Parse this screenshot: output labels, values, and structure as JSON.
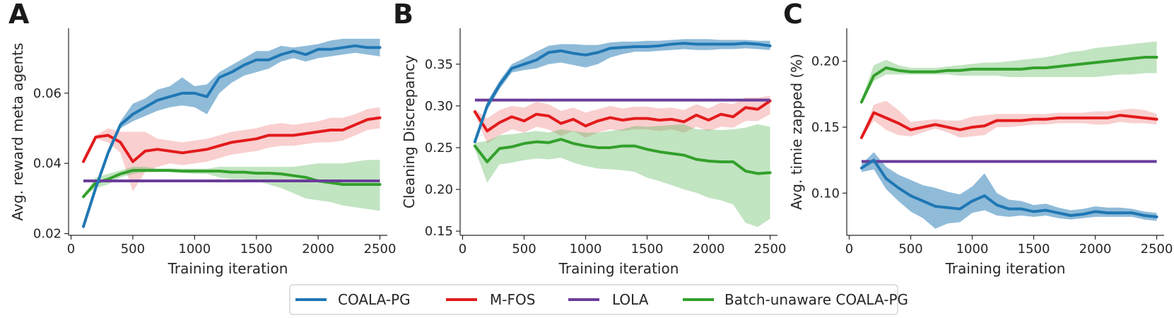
{
  "series_meta": [
    {
      "key": "coala",
      "name": "COALA-PG",
      "color": "#1f77b4",
      "fill": "#1f77b4"
    },
    {
      "key": "mfos",
      "name": "M-FOS",
      "color": "#e31a1c",
      "fill": "#f08080"
    },
    {
      "key": "lola",
      "name": "LOLA",
      "color": "#6a3d9a",
      "fill": "#6a3d9a"
    },
    {
      "key": "batch",
      "name": "Batch-unaware COALA-PG",
      "color": "#33a02c",
      "fill": "#5cb85c"
    }
  ],
  "chart_data": [
    {
      "type": "line",
      "letter": "A",
      "title": "",
      "xlabel": "Training iteration",
      "ylabel": "Avg. reward meta agents",
      "xlim": [
        -20,
        2560
      ],
      "ylim": [
        0.0195,
        0.0785
      ],
      "xticks": [
        0,
        500,
        1000,
        1500,
        2000,
        2500
      ],
      "xtick_labels": [
        "0",
        "500",
        "1000",
        "1500",
        "2000",
        "2500"
      ],
      "yticks": [
        0.02,
        0.04,
        0.06
      ],
      "ytick_labels": [
        "0.02",
        "0.04",
        "0.06"
      ],
      "x": [
        100,
        200,
        300,
        400,
        500,
        600,
        700,
        800,
        900,
        1000,
        1100,
        1200,
        1300,
        1400,
        1500,
        1600,
        1700,
        1800,
        1900,
        2000,
        2100,
        2200,
        2300,
        2400,
        2500
      ],
      "series": [
        {
          "key": "coala",
          "name": "COALA-PG",
          "values": [
            0.022,
            0.033,
            0.043,
            0.051,
            0.054,
            0.056,
            0.058,
            0.059,
            0.06,
            0.06,
            0.059,
            0.0645,
            0.066,
            0.068,
            0.0695,
            0.0695,
            0.071,
            0.072,
            0.071,
            0.0725,
            0.0725,
            0.073,
            0.0735,
            0.073,
            0.073
          ],
          "lower": [
            0.022,
            0.033,
            0.042,
            0.05,
            0.052,
            0.0535,
            0.055,
            0.056,
            0.0565,
            0.056,
            0.054,
            0.06,
            0.063,
            0.065,
            0.066,
            0.067,
            0.069,
            0.07,
            0.069,
            0.07,
            0.0705,
            0.071,
            0.0715,
            0.071,
            0.0705
          ],
          "upper": [
            0.022,
            0.034,
            0.044,
            0.052,
            0.057,
            0.0585,
            0.061,
            0.062,
            0.0645,
            0.062,
            0.0625,
            0.066,
            0.068,
            0.07,
            0.072,
            0.072,
            0.0735,
            0.073,
            0.0735,
            0.074,
            0.075,
            0.0755,
            0.0755,
            0.0755,
            0.0755
          ]
        },
        {
          "key": "mfos",
          "name": "M-FOS",
          "values": [
            0.0405,
            0.0475,
            0.048,
            0.046,
            0.0405,
            0.0435,
            0.044,
            0.0435,
            0.043,
            0.0435,
            0.044,
            0.045,
            0.046,
            0.0465,
            0.047,
            0.048,
            0.048,
            0.048,
            0.0485,
            0.049,
            0.0495,
            0.0495,
            0.051,
            0.0525,
            0.053
          ],
          "lower": [
            0.0405,
            0.047,
            0.046,
            0.043,
            0.032,
            0.0375,
            0.039,
            0.04,
            0.0395,
            0.04,
            0.0405,
            0.0415,
            0.0425,
            0.043,
            0.0435,
            0.0445,
            0.045,
            0.045,
            0.0455,
            0.046,
            0.046,
            0.0465,
            0.048,
            0.0495,
            0.05
          ],
          "upper": [
            0.0405,
            0.048,
            0.05,
            0.049,
            0.049,
            0.049,
            0.047,
            0.0465,
            0.046,
            0.0465,
            0.047,
            0.048,
            0.049,
            0.0495,
            0.05,
            0.051,
            0.0515,
            0.051,
            0.0515,
            0.052,
            0.053,
            0.053,
            0.054,
            0.0555,
            0.056
          ]
        },
        {
          "key": "batch",
          "name": "Batch-unaware COALA-PG",
          "values": [
            0.0305,
            0.0345,
            0.0355,
            0.037,
            0.038,
            0.038,
            0.038,
            0.038,
            0.0378,
            0.0378,
            0.0378,
            0.0378,
            0.0375,
            0.0375,
            0.0372,
            0.0372,
            0.037,
            0.0365,
            0.036,
            0.035,
            0.0345,
            0.034,
            0.034,
            0.034,
            0.034
          ],
          "lower": [
            0.0305,
            0.033,
            0.034,
            0.036,
            0.037,
            0.0375,
            0.0375,
            0.0375,
            0.0373,
            0.037,
            0.037,
            0.036,
            0.0355,
            0.0355,
            0.035,
            0.034,
            0.033,
            0.0315,
            0.03,
            0.0295,
            0.029,
            0.028,
            0.0275,
            0.027,
            0.0265
          ],
          "upper": [
            0.0305,
            0.036,
            0.037,
            0.038,
            0.039,
            0.039,
            0.0385,
            0.0385,
            0.0385,
            0.0385,
            0.0385,
            0.039,
            0.039,
            0.039,
            0.039,
            0.039,
            0.039,
            0.039,
            0.0395,
            0.04,
            0.04,
            0.04,
            0.0405,
            0.041,
            0.041
          ]
        },
        {
          "key": "lola",
          "name": "LOLA",
          "constant": 0.035
        }
      ]
    },
    {
      "type": "line",
      "letter": "B",
      "title": "",
      "xlabel": "Training iteration",
      "ylabel": "Cleaning Discrepancy",
      "xlim": [
        -20,
        2560
      ],
      "ylim": [
        0.145,
        0.393
      ],
      "xticks": [
        0,
        500,
        1000,
        1500,
        2000,
        2500
      ],
      "xtick_labels": [
        "0",
        "500",
        "1000",
        "1500",
        "2000",
        "2500"
      ],
      "yticks": [
        0.15,
        0.2,
        0.25,
        0.3,
        0.35
      ],
      "ytick_labels": [
        "0.15",
        "0.20",
        "0.25",
        "0.30",
        "0.35"
      ],
      "x": [
        100,
        200,
        300,
        400,
        500,
        600,
        700,
        800,
        900,
        1000,
        1100,
        1200,
        1300,
        1400,
        1500,
        1600,
        1700,
        1800,
        1900,
        2000,
        2100,
        2200,
        2300,
        2400,
        2500
      ],
      "series": [
        {
          "key": "coala",
          "name": "COALA-PG",
          "values": [
            0.257,
            0.3,
            0.325,
            0.345,
            0.35,
            0.355,
            0.364,
            0.366,
            0.363,
            0.361,
            0.364,
            0.369,
            0.37,
            0.371,
            0.371,
            0.372,
            0.374,
            0.375,
            0.374,
            0.374,
            0.374,
            0.374,
            0.375,
            0.374,
            0.372
          ],
          "lower": [
            0.255,
            0.295,
            0.32,
            0.34,
            0.343,
            0.345,
            0.35,
            0.352,
            0.349,
            0.346,
            0.35,
            0.358,
            0.362,
            0.365,
            0.365,
            0.366,
            0.367,
            0.368,
            0.367,
            0.367,
            0.368,
            0.368,
            0.369,
            0.368,
            0.367
          ],
          "upper": [
            0.26,
            0.305,
            0.33,
            0.35,
            0.357,
            0.365,
            0.372,
            0.374,
            0.374,
            0.373,
            0.373,
            0.376,
            0.377,
            0.377,
            0.378,
            0.378,
            0.379,
            0.38,
            0.38,
            0.38,
            0.379,
            0.379,
            0.379,
            0.378,
            0.378
          ]
        },
        {
          "key": "mfos",
          "name": "M-FOS",
          "values": [
            0.293,
            0.27,
            0.28,
            0.287,
            0.282,
            0.29,
            0.288,
            0.279,
            0.284,
            0.276,
            0.282,
            0.286,
            0.283,
            0.285,
            0.285,
            0.283,
            0.284,
            0.281,
            0.289,
            0.283,
            0.29,
            0.287,
            0.298,
            0.296,
            0.306
          ],
          "lower": [
            0.29,
            0.255,
            0.265,
            0.272,
            0.268,
            0.275,
            0.272,
            0.264,
            0.27,
            0.262,
            0.268,
            0.272,
            0.27,
            0.272,
            0.272,
            0.27,
            0.272,
            0.268,
            0.275,
            0.27,
            0.275,
            0.274,
            0.282,
            0.282,
            0.29
          ],
          "upper": [
            0.296,
            0.285,
            0.295,
            0.3,
            0.298,
            0.305,
            0.302,
            0.294,
            0.298,
            0.292,
            0.296,
            0.3,
            0.297,
            0.299,
            0.299,
            0.297,
            0.298,
            0.295,
            0.302,
            0.297,
            0.304,
            0.302,
            0.31,
            0.31,
            0.312
          ]
        },
        {
          "key": "batch",
          "name": "Batch-unaware COALA-PG",
          "values": [
            0.252,
            0.233,
            0.249,
            0.251,
            0.255,
            0.257,
            0.256,
            0.26,
            0.255,
            0.252,
            0.25,
            0.25,
            0.252,
            0.252,
            0.248,
            0.245,
            0.243,
            0.241,
            0.236,
            0.234,
            0.233,
            0.233,
            0.222,
            0.219,
            0.22
          ],
          "lower": [
            0.248,
            0.208,
            0.23,
            0.232,
            0.235,
            0.237,
            0.236,
            0.238,
            0.232,
            0.228,
            0.225,
            0.224,
            0.223,
            0.221,
            0.214,
            0.21,
            0.205,
            0.2,
            0.196,
            0.19,
            0.187,
            0.182,
            0.16,
            0.155,
            0.165
          ],
          "upper": [
            0.256,
            0.258,
            0.265,
            0.266,
            0.268,
            0.27,
            0.268,
            0.272,
            0.27,
            0.268,
            0.268,
            0.27,
            0.272,
            0.276,
            0.275,
            0.276,
            0.277,
            0.278,
            0.272,
            0.272,
            0.271,
            0.272,
            0.274,
            0.278,
            0.275
          ]
        },
        {
          "key": "lola",
          "name": "LOLA",
          "constant": 0.307
        }
      ]
    },
    {
      "type": "line",
      "letter": "C",
      "title": "",
      "xlabel": "Training iteration",
      "ylabel": "Avg. timie zapped (%)",
      "xlim": [
        -20,
        2560
      ],
      "ylim": [
        0.068,
        0.225
      ],
      "xticks": [
        0,
        500,
        1000,
        1500,
        2000,
        2500
      ],
      "xtick_labels": [
        "0",
        "500",
        "1000",
        "1500",
        "2000",
        "2500"
      ],
      "yticks": [
        0.1,
        0.15,
        0.2
      ],
      "ytick_labels": [
        "0.10",
        "0.15",
        "0.20"
      ],
      "x": [
        100,
        200,
        300,
        400,
        500,
        600,
        700,
        800,
        900,
        1000,
        1100,
        1200,
        1300,
        1400,
        1500,
        1600,
        1700,
        1800,
        1900,
        2000,
        2100,
        2200,
        2300,
        2400,
        2500
      ],
      "series": [
        {
          "key": "coala",
          "name": "COALA-PG",
          "values": [
            0.119,
            0.125,
            0.111,
            0.104,
            0.098,
            0.094,
            0.09,
            0.089,
            0.088,
            0.094,
            0.098,
            0.091,
            0.088,
            0.088,
            0.086,
            0.087,
            0.085,
            0.083,
            0.084,
            0.086,
            0.085,
            0.085,
            0.085,
            0.083,
            0.082
          ],
          "lower": [
            0.116,
            0.118,
            0.103,
            0.094,
            0.086,
            0.081,
            0.073,
            0.077,
            0.078,
            0.085,
            0.087,
            0.083,
            0.082,
            0.083,
            0.082,
            0.083,
            0.081,
            0.08,
            0.081,
            0.082,
            0.082,
            0.082,
            0.082,
            0.08,
            0.079
          ],
          "upper": [
            0.122,
            0.131,
            0.12,
            0.114,
            0.11,
            0.106,
            0.104,
            0.101,
            0.099,
            0.105,
            0.115,
            0.1,
            0.095,
            0.094,
            0.091,
            0.092,
            0.089,
            0.087,
            0.088,
            0.09,
            0.089,
            0.089,
            0.088,
            0.086,
            0.085
          ]
        },
        {
          "key": "mfos",
          "name": "M-FOS",
          "values": [
            0.142,
            0.161,
            0.157,
            0.153,
            0.148,
            0.15,
            0.152,
            0.15,
            0.148,
            0.15,
            0.151,
            0.155,
            0.155,
            0.155,
            0.156,
            0.156,
            0.157,
            0.157,
            0.157,
            0.157,
            0.157,
            0.159,
            0.158,
            0.157,
            0.156
          ],
          "lower": [
            0.141,
            0.155,
            0.148,
            0.144,
            0.143,
            0.146,
            0.149,
            0.146,
            0.142,
            0.143,
            0.144,
            0.15,
            0.15,
            0.151,
            0.152,
            0.152,
            0.153,
            0.153,
            0.153,
            0.152,
            0.152,
            0.154,
            0.153,
            0.153,
            0.152
          ],
          "upper": [
            0.143,
            0.167,
            0.17,
            0.163,
            0.154,
            0.155,
            0.156,
            0.155,
            0.155,
            0.158,
            0.159,
            0.16,
            0.16,
            0.16,
            0.16,
            0.16,
            0.161,
            0.161,
            0.161,
            0.162,
            0.162,
            0.163,
            0.164,
            0.163,
            0.16
          ]
        },
        {
          "key": "batch",
          "name": "Batch-unaware COALA-PG",
          "values": [
            0.169,
            0.189,
            0.195,
            0.193,
            0.192,
            0.192,
            0.192,
            0.193,
            0.193,
            0.194,
            0.194,
            0.194,
            0.194,
            0.194,
            0.195,
            0.195,
            0.196,
            0.197,
            0.198,
            0.199,
            0.2,
            0.201,
            0.202,
            0.203,
            0.203
          ],
          "lower": [
            0.168,
            0.185,
            0.19,
            0.19,
            0.19,
            0.19,
            0.19,
            0.19,
            0.189,
            0.189,
            0.189,
            0.189,
            0.188,
            0.188,
            0.188,
            0.188,
            0.188,
            0.188,
            0.188,
            0.188,
            0.189,
            0.19,
            0.19,
            0.191,
            0.191
          ],
          "upper": [
            0.171,
            0.197,
            0.201,
            0.197,
            0.195,
            0.195,
            0.195,
            0.196,
            0.197,
            0.198,
            0.199,
            0.199,
            0.2,
            0.201,
            0.202,
            0.203,
            0.205,
            0.207,
            0.208,
            0.21,
            0.211,
            0.212,
            0.213,
            0.214,
            0.215
          ]
        },
        {
          "key": "lola",
          "name": "LOLA",
          "constant": 0.124
        }
      ]
    }
  ]
}
